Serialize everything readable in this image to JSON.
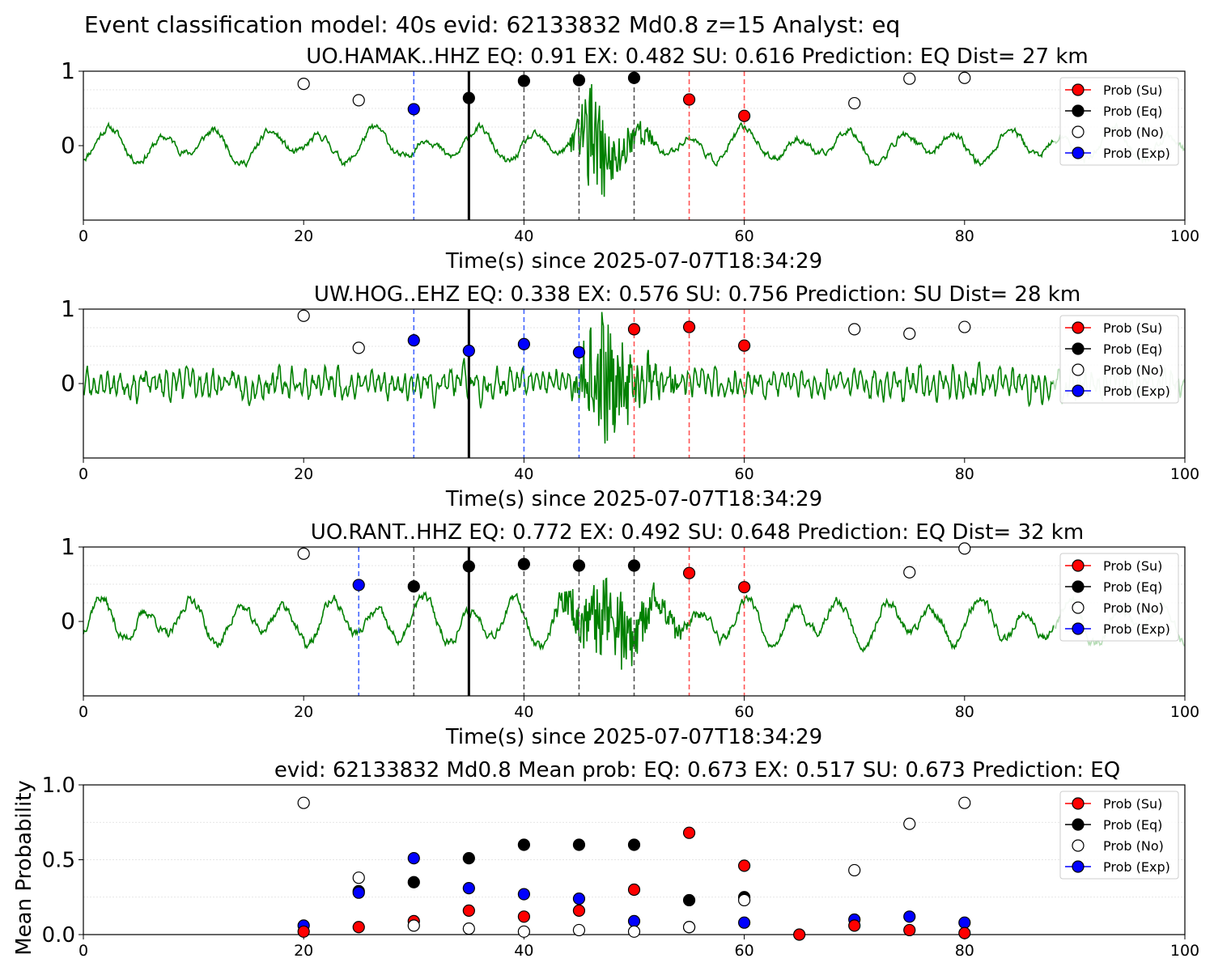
{
  "suptitle": "Event classification model: 40s evid: 62133832 Md0.8 z=15 Analyst: eq",
  "colors": {
    "su": "#ff0000",
    "eq": "#000000",
    "no": "#ffffff",
    "exp": "#0000ff",
    "trace": "#008000",
    "trace_faded": "#b8ddb8"
  },
  "legend_labels": [
    "Prob (Su)",
    "Prob (Eq)",
    "Prob (No)",
    "Prob (Exp)"
  ],
  "chart_data": [
    {
      "type": "line",
      "title": "UO.HAMAK..HHZ   EQ: 0.91  EX: 0.482  SU: 0.616   Prediction: EQ    Dist= 27 km",
      "xlabel": "Time(s) since 2025-07-07T18:34:29",
      "ylabel": "",
      "xlim": [
        0,
        100
      ],
      "ylim": [
        -1,
        1
      ],
      "xticks": [
        "0",
        "20",
        "40",
        "60",
        "80",
        "100"
      ],
      "yticks": [
        "0",
        "1"
      ],
      "legend": "right",
      "waveform": {
        "description_hint": "green seismogram",
        "base_amp": 0.22,
        "osc_period": 4.8,
        "burst_start": 44,
        "burst_peak": 46,
        "burst_end": 52,
        "burst_amp": 0.75,
        "seed": 11
      },
      "vlines": [
        {
          "x": 30,
          "color": "exp",
          "style": "dashed"
        },
        {
          "x": 35,
          "color": "eq",
          "style": "solid"
        },
        {
          "x": 40,
          "color": "eq",
          "style": "dashed"
        },
        {
          "x": 45,
          "color": "eq",
          "style": "dashed"
        },
        {
          "x": 50,
          "color": "eq",
          "style": "dashed"
        },
        {
          "x": 55,
          "color": "su",
          "style": "dashed"
        },
        {
          "x": 60,
          "color": "su",
          "style": "dashed"
        }
      ],
      "points": [
        {
          "x": 20,
          "y": 0.83,
          "cls": "no"
        },
        {
          "x": 25,
          "y": 0.61,
          "cls": "no"
        },
        {
          "x": 30,
          "y": 0.49,
          "cls": "exp"
        },
        {
          "x": 35,
          "y": 0.64,
          "cls": "eq"
        },
        {
          "x": 40,
          "y": 0.87,
          "cls": "eq"
        },
        {
          "x": 45,
          "y": 0.88,
          "cls": "eq"
        },
        {
          "x": 50,
          "y": 0.91,
          "cls": "eq"
        },
        {
          "x": 55,
          "y": 0.62,
          "cls": "su"
        },
        {
          "x": 60,
          "y": 0.4,
          "cls": "su"
        },
        {
          "x": 70,
          "y": 0.57,
          "cls": "no"
        },
        {
          "x": 75,
          "y": 0.9,
          "cls": "no"
        },
        {
          "x": 80,
          "y": 0.91,
          "cls": "no"
        }
      ]
    },
    {
      "type": "line",
      "title": "UW.HOG..EHZ   EQ: 0.338  EX: 0.576  SU: 0.756   Prediction: SU    Dist= 28 km",
      "xlabel": "Time(s) since 2025-07-07T18:34:29",
      "ylabel": "",
      "xlim": [
        0,
        100
      ],
      "ylim": [
        -1,
        1
      ],
      "xticks": [
        "0",
        "20",
        "40",
        "60",
        "80",
        "100"
      ],
      "yticks": [
        "0",
        "1"
      ],
      "legend": "right",
      "waveform": {
        "base_amp": 0.16,
        "osc_period": 0.6,
        "burst_start": 44,
        "burst_peak": 47,
        "burst_end": 54,
        "burst_amp": 0.85,
        "seed": 23
      },
      "vlines": [
        {
          "x": 30,
          "color": "exp",
          "style": "dashed"
        },
        {
          "x": 35,
          "color": "eq",
          "style": "solid"
        },
        {
          "x": 40,
          "color": "exp",
          "style": "dashed"
        },
        {
          "x": 45,
          "color": "exp",
          "style": "dashed"
        },
        {
          "x": 50,
          "color": "su",
          "style": "dashed"
        },
        {
          "x": 55,
          "color": "su",
          "style": "dashed"
        },
        {
          "x": 60,
          "color": "su",
          "style": "dashed"
        }
      ],
      "points": [
        {
          "x": 20,
          "y": 0.91,
          "cls": "no"
        },
        {
          "x": 25,
          "y": 0.48,
          "cls": "no"
        },
        {
          "x": 30,
          "y": 0.58,
          "cls": "exp"
        },
        {
          "x": 35,
          "y": 0.44,
          "cls": "exp"
        },
        {
          "x": 40,
          "y": 0.53,
          "cls": "exp"
        },
        {
          "x": 45,
          "y": 0.42,
          "cls": "exp"
        },
        {
          "x": 50,
          "y": 0.73,
          "cls": "su"
        },
        {
          "x": 55,
          "y": 0.76,
          "cls": "su"
        },
        {
          "x": 60,
          "y": 0.51,
          "cls": "su"
        },
        {
          "x": 70,
          "y": 0.73,
          "cls": "no"
        },
        {
          "x": 75,
          "y": 0.67,
          "cls": "no"
        },
        {
          "x": 80,
          "y": 0.76,
          "cls": "no"
        }
      ]
    },
    {
      "type": "line",
      "title": "UO.RANT..HHZ   EQ: 0.772  EX: 0.492  SU: 0.648   Prediction: EQ    Dist= 32 km",
      "xlabel": "Time(s) since 2025-07-07T18:34:29",
      "ylabel": "",
      "xlim": [
        0,
        100
      ],
      "ylim": [
        -1,
        1
      ],
      "xticks": [
        "0",
        "20",
        "40",
        "60",
        "80",
        "100"
      ],
      "yticks": [
        "0",
        "1"
      ],
      "legend": "right",
      "waveform": {
        "base_amp": 0.3,
        "osc_period": 4.2,
        "burst_start": 42,
        "burst_peak": 48,
        "burst_end": 56,
        "burst_amp": 0.6,
        "seed": 37
      },
      "vlines": [
        {
          "x": 25,
          "color": "exp",
          "style": "dashed"
        },
        {
          "x": 30,
          "color": "eq",
          "style": "dashed"
        },
        {
          "x": 35,
          "color": "eq",
          "style": "solid"
        },
        {
          "x": 40,
          "color": "eq",
          "style": "dashed"
        },
        {
          "x": 45,
          "color": "eq",
          "style": "dashed"
        },
        {
          "x": 50,
          "color": "eq",
          "style": "dashed"
        },
        {
          "x": 55,
          "color": "su",
          "style": "dashed"
        },
        {
          "x": 60,
          "color": "su",
          "style": "dashed"
        }
      ],
      "points": [
        {
          "x": 20,
          "y": 0.91,
          "cls": "no"
        },
        {
          "x": 25,
          "y": 0.49,
          "cls": "exp"
        },
        {
          "x": 30,
          "y": 0.47,
          "cls": "eq"
        },
        {
          "x": 35,
          "y": 0.74,
          "cls": "eq"
        },
        {
          "x": 40,
          "y": 0.77,
          "cls": "eq"
        },
        {
          "x": 45,
          "y": 0.75,
          "cls": "eq"
        },
        {
          "x": 50,
          "y": 0.75,
          "cls": "eq"
        },
        {
          "x": 55,
          "y": 0.65,
          "cls": "su"
        },
        {
          "x": 60,
          "y": 0.46,
          "cls": "su"
        },
        {
          "x": 75,
          "y": 0.66,
          "cls": "no"
        },
        {
          "x": 80,
          "y": 0.98,
          "cls": "no"
        }
      ]
    },
    {
      "type": "scatter",
      "title": "evid: 62133832  Md0.8   Mean prob:   EQ: 0.673  EX: 0.517  SU: 0.673   Prediction: EQ",
      "xlabel": "",
      "ylabel": "Mean Probability",
      "xlim": [
        0,
        100
      ],
      "ylim": [
        0,
        1
      ],
      "xticks": [
        "0",
        "20",
        "40",
        "60",
        "80",
        "100"
      ],
      "yticks": [
        "0.0",
        "0.5",
        "1.0"
      ],
      "legend": "right",
      "points": [
        {
          "x": 20,
          "y": 0.88,
          "cls": "no"
        },
        {
          "x": 20,
          "y": 0.06,
          "cls": "exp"
        },
        {
          "x": 20,
          "y": 0.02,
          "cls": "su"
        },
        {
          "x": 25,
          "y": 0.38,
          "cls": "no"
        },
        {
          "x": 25,
          "y": 0.29,
          "cls": "eq"
        },
        {
          "x": 25,
          "y": 0.28,
          "cls": "exp"
        },
        {
          "x": 25,
          "y": 0.05,
          "cls": "su"
        },
        {
          "x": 30,
          "y": 0.51,
          "cls": "exp"
        },
        {
          "x": 30,
          "y": 0.35,
          "cls": "eq"
        },
        {
          "x": 30,
          "y": 0.09,
          "cls": "su"
        },
        {
          "x": 30,
          "y": 0.06,
          "cls": "no"
        },
        {
          "x": 35,
          "y": 0.51,
          "cls": "eq"
        },
        {
          "x": 35,
          "y": 0.31,
          "cls": "exp"
        },
        {
          "x": 35,
          "y": 0.16,
          "cls": "su"
        },
        {
          "x": 35,
          "y": 0.04,
          "cls": "no"
        },
        {
          "x": 40,
          "y": 0.6,
          "cls": "eq"
        },
        {
          "x": 40,
          "y": 0.27,
          "cls": "exp"
        },
        {
          "x": 40,
          "y": 0.12,
          "cls": "su"
        },
        {
          "x": 40,
          "y": 0.02,
          "cls": "no"
        },
        {
          "x": 45,
          "y": 0.6,
          "cls": "eq"
        },
        {
          "x": 45,
          "y": 0.24,
          "cls": "exp"
        },
        {
          "x": 45,
          "y": 0.16,
          "cls": "su"
        },
        {
          "x": 45,
          "y": 0.03,
          "cls": "no"
        },
        {
          "x": 50,
          "y": 0.6,
          "cls": "eq"
        },
        {
          "x": 50,
          "y": 0.3,
          "cls": "su"
        },
        {
          "x": 50,
          "y": 0.09,
          "cls": "exp"
        },
        {
          "x": 50,
          "y": 0.02,
          "cls": "no"
        },
        {
          "x": 55,
          "y": 0.68,
          "cls": "su"
        },
        {
          "x": 55,
          "y": 0.23,
          "cls": "eq"
        },
        {
          "x": 55,
          "y": 0.05,
          "cls": "eq"
        },
        {
          "x": 55,
          "y": 0.05,
          "cls": "no"
        },
        {
          "x": 60,
          "y": 0.46,
          "cls": "su"
        },
        {
          "x": 60,
          "y": 0.25,
          "cls": "eq"
        },
        {
          "x": 60,
          "y": 0.23,
          "cls": "no"
        },
        {
          "x": 60,
          "y": 0.08,
          "cls": "exp"
        },
        {
          "x": 65,
          "y": 0.0,
          "cls": "su"
        },
        {
          "x": 70,
          "y": 0.43,
          "cls": "no"
        },
        {
          "x": 70,
          "y": 0.1,
          "cls": "exp"
        },
        {
          "x": 70,
          "y": 0.06,
          "cls": "su"
        },
        {
          "x": 75,
          "y": 0.74,
          "cls": "no"
        },
        {
          "x": 75,
          "y": 0.12,
          "cls": "exp"
        },
        {
          "x": 75,
          "y": 0.03,
          "cls": "su"
        },
        {
          "x": 80,
          "y": 0.88,
          "cls": "no"
        },
        {
          "x": 80,
          "y": 0.08,
          "cls": "exp"
        },
        {
          "x": 80,
          "y": 0.01,
          "cls": "su"
        }
      ]
    }
  ]
}
